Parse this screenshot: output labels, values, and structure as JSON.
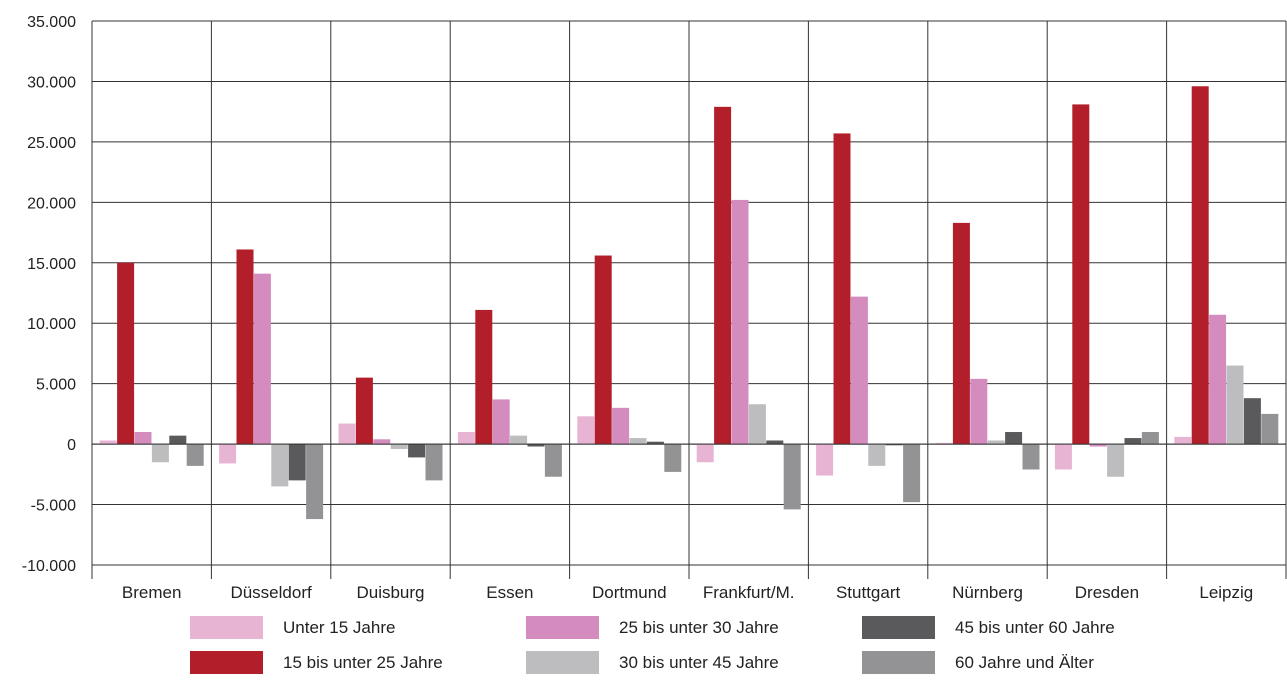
{
  "chart_data": {
    "type": "bar",
    "title": "",
    "xlabel": "",
    "ylabel": "",
    "categories": [
      "Bremen",
      "Düsseldorf",
      "Duisburg",
      "Essen",
      "Dortmund",
      "Frankfurt/M.",
      "Stuttgart",
      "Nürnberg",
      "Dresden",
      "Leipzig"
    ],
    "ylim": [
      -10000,
      35000
    ],
    "yticks": [
      -10000,
      -5000,
      0,
      5000,
      10000,
      15000,
      20000,
      25000,
      30000,
      35000
    ],
    "ytick_labels": [
      "-10.000",
      "-5.000",
      "0",
      "5.000",
      "10.000",
      "15.000",
      "20.000",
      "25.000",
      "30.000",
      "35.000"
    ],
    "grid": true,
    "legend_position": "bottom",
    "series": [
      {
        "name": "Unter 15 Jahre",
        "color": "#e8b4d4",
        "values": [
          300,
          -1600,
          1700,
          1000,
          2300,
          -1500,
          -2600,
          100,
          -2100,
          600
        ]
      },
      {
        "name": "15 bis unter 25 Jahre",
        "color": "#b21f2b",
        "values": [
          15000,
          16100,
          5500,
          11100,
          15600,
          27900,
          25700,
          18300,
          28100,
          29600
        ]
      },
      {
        "name": "25 bis unter 30 Jahre",
        "color": "#d48cbf",
        "values": [
          1000,
          14100,
          400,
          3700,
          3000,
          20200,
          12200,
          5400,
          -200,
          10700
        ]
      },
      {
        "name": "30 bis unter 45 Jahre",
        "color": "#bdbdbf",
        "values": [
          -1500,
          -3500,
          -400,
          700,
          500,
          3300,
          -1800,
          300,
          -2700,
          6500
        ]
      },
      {
        "name": "45 bis unter 60 Jahre",
        "color": "#5a5a5c",
        "values": [
          700,
          -3000,
          -1100,
          -200,
          200,
          300,
          -100,
          1000,
          500,
          3800
        ]
      },
      {
        "name": "60 Jahre und Älter",
        "color": "#939396",
        "values": [
          -1800,
          -6200,
          -3000,
          -2700,
          -2300,
          -5400,
          -4800,
          -2100,
          1000,
          2500
        ]
      }
    ]
  }
}
